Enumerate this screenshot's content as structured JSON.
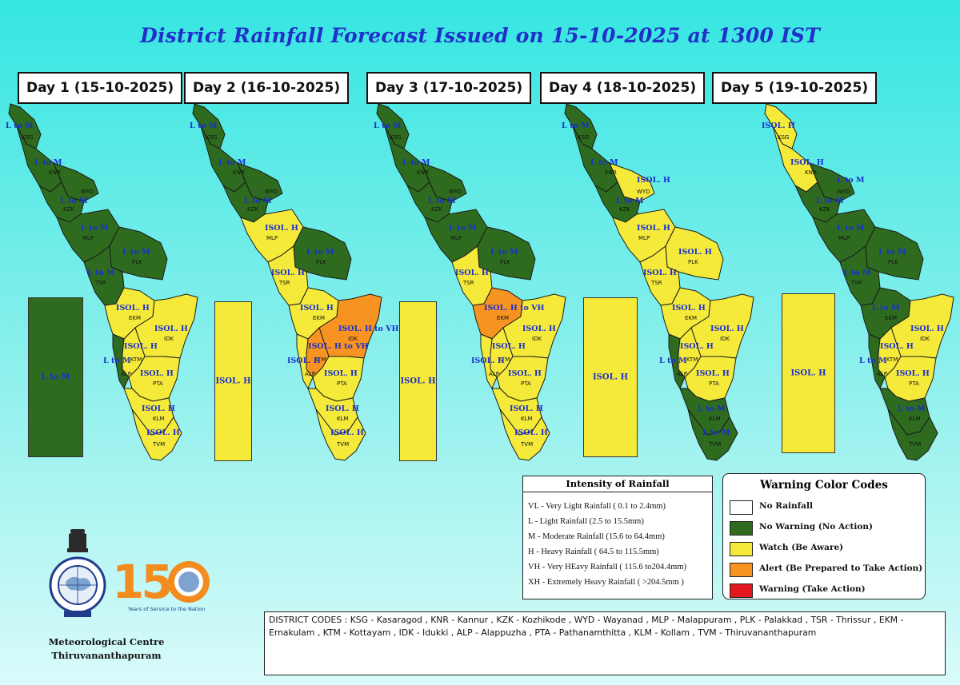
{
  "title": "District Rainfall Forecast Issued on  15-10-2025 at 1300 IST",
  "colors": {
    "no_warning": "#2e6b1f",
    "watch": "#f5ea3a",
    "alert": "#f79320",
    "warning": "#e3181f",
    "no_rain": "#ffffff"
  },
  "days": [
    {
      "label": "Day 1 (15-10-2025)",
      "sea_text": "L to M",
      "sea_color": "no_warning",
      "districts": {
        "KSG": {
          "color": "no_warning",
          "forecast": "L to M"
        },
        "KNR": {
          "color": "no_warning",
          "forecast": "L to M"
        },
        "WYD": {
          "color": "no_warning",
          "forecast": ""
        },
        "KZK": {
          "color": "no_warning",
          "forecast": "L to M"
        },
        "MLP": {
          "color": "no_warning",
          "forecast": "L to M"
        },
        "PLK": {
          "color": "no_warning",
          "forecast": "L to M"
        },
        "TSR": {
          "color": "no_warning",
          "forecast": "L to M"
        },
        "EKM": {
          "color": "watch",
          "forecast": "ISOL. H"
        },
        "IDK": {
          "color": "watch",
          "forecast": "ISOL. H"
        },
        "KTM": {
          "color": "watch",
          "forecast": "ISOL. H"
        },
        "ALP": {
          "color": "no_warning",
          "forecast": "L to M"
        },
        "PTA": {
          "color": "watch",
          "forecast": "ISOL. H"
        },
        "KLM": {
          "color": "watch",
          "forecast": "ISOL. H"
        },
        "TVM": {
          "color": "watch",
          "forecast": "ISOL. H"
        }
      }
    },
    {
      "label": "Day 2 (16-10-2025)",
      "sea_text": "ISOL. H",
      "sea_color": "watch",
      "districts": {
        "KSG": {
          "color": "no_warning",
          "forecast": "L to M"
        },
        "KNR": {
          "color": "no_warning",
          "forecast": "L to M"
        },
        "WYD": {
          "color": "no_warning",
          "forecast": ""
        },
        "KZK": {
          "color": "no_warning",
          "forecast": "L to M"
        },
        "MLP": {
          "color": "watch",
          "forecast": "ISOL. H"
        },
        "PLK": {
          "color": "no_warning",
          "forecast": "L to M"
        },
        "TSR": {
          "color": "watch",
          "forecast": "ISOL. H"
        },
        "EKM": {
          "color": "watch",
          "forecast": "ISOL. H"
        },
        "IDK": {
          "color": "alert",
          "forecast": "ISOL. H to VH"
        },
        "KTM": {
          "color": "alert",
          "forecast": "ISOL. H to VH"
        },
        "ALP": {
          "color": "watch",
          "forecast": "ISOL. H"
        },
        "PTA": {
          "color": "watch",
          "forecast": "ISOL. H"
        },
        "KLM": {
          "color": "watch",
          "forecast": "ISOL. H"
        },
        "TVM": {
          "color": "watch",
          "forecast": "ISOL. H"
        }
      }
    },
    {
      "label": "Day 3 (17-10-2025)",
      "sea_text": "ISOL. H",
      "sea_color": "watch",
      "districts": {
        "KSG": {
          "color": "no_warning",
          "forecast": "L to M"
        },
        "KNR": {
          "color": "no_warning",
          "forecast": "L to M"
        },
        "WYD": {
          "color": "no_warning",
          "forecast": ""
        },
        "KZK": {
          "color": "no_warning",
          "forecast": "L to M"
        },
        "MLP": {
          "color": "no_warning",
          "forecast": "L to M"
        },
        "PLK": {
          "color": "no_warning",
          "forecast": "L to M"
        },
        "TSR": {
          "color": "watch",
          "forecast": "ISOL. H"
        },
        "EKM": {
          "color": "alert",
          "forecast": "ISOL. H to VH"
        },
        "IDK": {
          "color": "watch",
          "forecast": "ISOL. H"
        },
        "KTM": {
          "color": "watch",
          "forecast": "ISOL. H"
        },
        "ALP": {
          "color": "watch",
          "forecast": "ISOL. H"
        },
        "PTA": {
          "color": "watch",
          "forecast": "ISOL. H"
        },
        "KLM": {
          "color": "watch",
          "forecast": "ISOL. H"
        },
        "TVM": {
          "color": "watch",
          "forecast": "ISOL. H"
        }
      }
    },
    {
      "label": "Day 4 (18-10-2025)",
      "sea_text": "ISOL. H",
      "sea_color": "watch",
      "districts": {
        "KSG": {
          "color": "no_warning",
          "forecast": "L to M"
        },
        "KNR": {
          "color": "no_warning",
          "forecast": "L to M"
        },
        "WYD": {
          "color": "watch",
          "forecast": "ISOL. H"
        },
        "KZK": {
          "color": "no_warning",
          "forecast": "L to M"
        },
        "MLP": {
          "color": "watch",
          "forecast": "ISOL. H"
        },
        "PLK": {
          "color": "watch",
          "forecast": "ISOL. H"
        },
        "TSR": {
          "color": "watch",
          "forecast": "ISOL. H"
        },
        "EKM": {
          "color": "watch",
          "forecast": "ISOL. H"
        },
        "IDK": {
          "color": "watch",
          "forecast": "ISOL. H"
        },
        "KTM": {
          "color": "watch",
          "forecast": "ISOL. H"
        },
        "ALP": {
          "color": "no_warning",
          "forecast": "L to M"
        },
        "PTA": {
          "color": "watch",
          "forecast": "ISOL. H"
        },
        "KLM": {
          "color": "no_warning",
          "forecast": "L to M"
        },
        "TVM": {
          "color": "no_warning",
          "forecast": "L to M"
        }
      }
    },
    {
      "label": "Day 5 (19-10-2025)",
      "sea_text": "ISOL. H",
      "sea_color": "watch",
      "districts": {
        "KSG": {
          "color": "watch",
          "forecast": "ISOL. H"
        },
        "KNR": {
          "color": "watch",
          "forecast": "ISOL. H"
        },
        "WYD": {
          "color": "no_warning",
          "forecast": "L to M"
        },
        "KZK": {
          "color": "no_warning",
          "forecast": "L to M"
        },
        "MLP": {
          "color": "no_warning",
          "forecast": "L to M"
        },
        "PLK": {
          "color": "no_warning",
          "forecast": "L to M"
        },
        "TSR": {
          "color": "no_warning",
          "forecast": "L to M"
        },
        "EKM": {
          "color": "no_warning",
          "forecast": "L to M"
        },
        "IDK": {
          "color": "watch",
          "forecast": "ISOL. H"
        },
        "KTM": {
          "color": "watch",
          "forecast": "ISOL. H"
        },
        "ALP": {
          "color": "no_warning",
          "forecast": "L to M"
        },
        "PTA": {
          "color": "watch",
          "forecast": "ISOL. H"
        },
        "KLM": {
          "color": "no_warning",
          "forecast": "L to M"
        },
        "TVM": {
          "color": "no_warning",
          "forecast": ""
        }
      }
    }
  ],
  "intensity": {
    "title": "Intensity of Rainfall",
    "rows": [
      "VL - Very Light Rainfall ( 0.1 to 2.4mm)",
      "L  - Light Rainfall (2.5 to 15.5mm)",
      "M  - Moderate Rainfall (15.6 to 64.4mm)",
      "H  - Heavy Rainfall ( 64.5 to 115.5mm)",
      "VH - Very HEavy Rainfall ( 115.6 to204.4mm)",
      "XH - Extremely Heavy Rainfall ( >204.5mm )"
    ]
  },
  "warning_codes": {
    "title": "Warning Color Codes",
    "items": [
      {
        "color": "#ffffff",
        "label": "No Rainfall"
      },
      {
        "color": "#2e6b1f",
        "label": "No Warning (No Action)"
      },
      {
        "color": "#f5ea3a",
        "label": "Watch (Be Aware)"
      },
      {
        "color": "#f79320",
        "label": "Alert (Be Prepared to Take Action)"
      },
      {
        "color": "#e3181f",
        "label": "Warning (Take Action)"
      }
    ]
  },
  "district_codes": "DISTRICT CODES : KSG - Kasaragod , KNR - Kannur , KZK - Kozhikode , WYD - Wayanad , MLP - Malappuram , PLK - Palakkad , TSR - Thrissur , EKM - Ernakulam , KTM - Kottayam , IDK - Idukki , ALP - Alappuzha ,     PTA - Pathanamthitta , KLM - Kollam , TVM - Thiruvananthapuram",
  "footer": {
    "org_line1": "Meteorological Centre",
    "org_line2": "Thiruvananthapuram",
    "logo_150": "150",
    "logo_tagline": "Years of Service to the Nation"
  }
}
